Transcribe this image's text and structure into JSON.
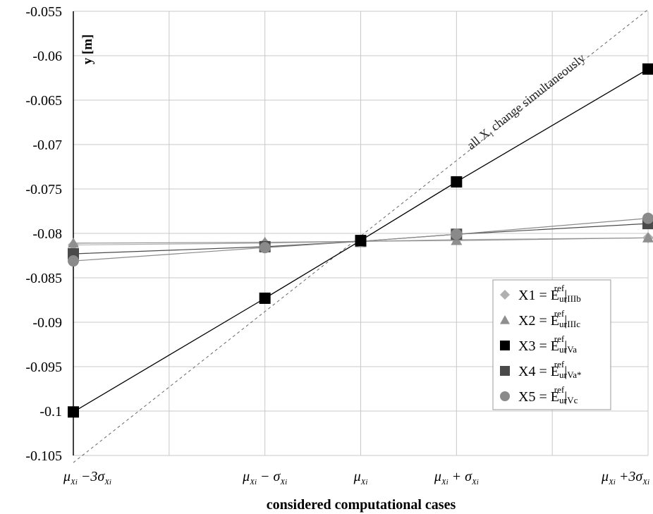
{
  "chart_data": {
    "type": "line",
    "ylabel": "y [m]",
    "xlabel": "considered computational cases",
    "ylim": [
      -0.105,
      -0.055
    ],
    "yticks": [
      -0.055,
      -0.06,
      -0.065,
      -0.07,
      -0.075,
      -0.08,
      -0.085,
      -0.09,
      -0.095,
      -0.1,
      -0.105
    ],
    "ytick_labels": [
      "-0.055",
      "-0.06",
      "-0.065",
      "-0.07",
      "-0.075",
      "-0.08",
      "-0.085",
      "-0.09",
      "-0.095",
      "-0.1",
      "-0.105"
    ],
    "x_range": [
      -3,
      3
    ],
    "x": [
      -3,
      -1,
      0,
      1,
      3
    ],
    "categories": [
      "μ_Xi − 3σ_Xi",
      "μ_Xi − σ_Xi",
      "μ_Xi",
      "μ_Xi + σ_Xi",
      "μ_Xi + 3σ_Xi"
    ],
    "grid": true,
    "legend_position": "bottom-right",
    "annotation": {
      "text_before": "all X",
      "text_sub": "i",
      "text_after": " change simultaneously",
      "line_x": [
        -3,
        3
      ],
      "line_y": [
        -0.1058,
        -0.0548
      ]
    },
    "series": [
      {
        "name": "X1 = Eur ref |IIIb",
        "legend_main": "X1 = E",
        "legend_sub1": "ur",
        "legend_sup": "ref",
        "legend_bar_sub": "IIIb",
        "marker": "diamond",
        "color": "#b0b0b0",
        "values": [
          -0.0813,
          -0.0811,
          -0.0809,
          -0.0807,
          -0.0805
        ]
      },
      {
        "name": "X2 = Eur ref |IIIc",
        "legend_main": "X2 = E",
        "legend_sub1": "ur",
        "legend_sup": "ref",
        "legend_bar_sub": "IIIc",
        "marker": "triangle",
        "color": "#8f8f8f",
        "values": [
          -0.0811,
          -0.081,
          -0.0809,
          -0.0808,
          -0.0805
        ]
      },
      {
        "name": "X3 = Eur ref |Va",
        "legend_main": "X3 = E",
        "legend_sub1": "ur",
        "legend_sup": "ref",
        "legend_bar_sub": "Va",
        "marker": "square",
        "color": "#000000",
        "values": [
          -0.1001,
          -0.0873,
          -0.0808,
          -0.0742,
          -0.0615
        ]
      },
      {
        "name": "X4 = Eur ref |Va*",
        "legend_main": "X4 = E",
        "legend_sub1": "ur",
        "legend_sup": "ref",
        "legend_bar_sub": "Va*",
        "marker": "square",
        "color": "#4a4a4a",
        "values": [
          -0.0823,
          -0.0815,
          -0.0809,
          -0.0801,
          -0.0789
        ]
      },
      {
        "name": "X5 = Eur ref |Vc",
        "legend_main": "X5 = E",
        "legend_sub1": "ur",
        "legend_sup": "ref",
        "legend_bar_sub": "Vc",
        "marker": "circle",
        "color": "#8a8a8a",
        "values": [
          -0.0831,
          -0.0816,
          -0.0809,
          -0.0801,
          -0.0783
        ]
      }
    ]
  }
}
